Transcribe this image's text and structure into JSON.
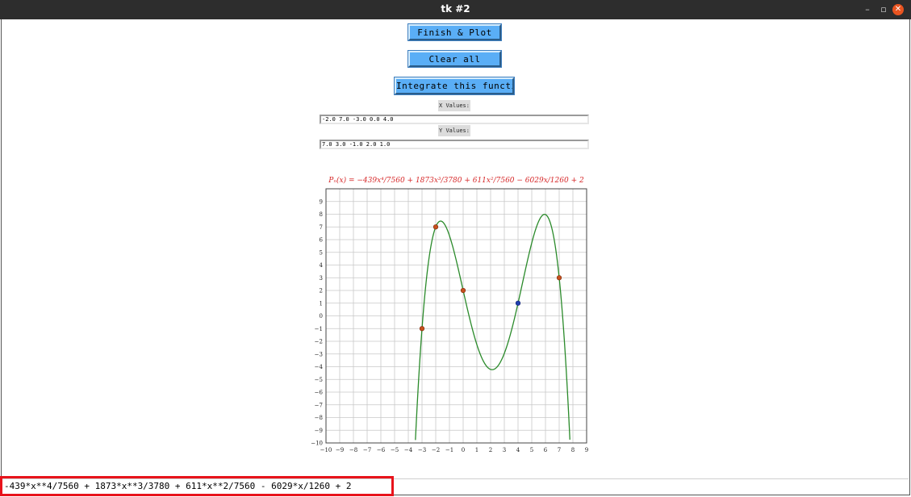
{
  "window": {
    "title": "tk #2",
    "minimize_glyph": "–",
    "maximize_glyph": "▫",
    "close_glyph": "✕"
  },
  "buttons": {
    "finish_plot": "Finish & Plot",
    "clear_all": "Clear all",
    "integrate": "Integrate this function"
  },
  "inputs": {
    "x_label": "X Values:",
    "x_value": "-2.0 7.0 -3.0 0.0 4.0",
    "y_label": "Y Values:",
    "y_value": "7.0 3.0 -1.0 2.0 1.0"
  },
  "status": {
    "expression": "-439*x**4/7560 + 1873*x**3/3780 + 611*x**2/7560 - 6029*x/1260 + 2"
  },
  "colors": {
    "curve": "#2a8a2a",
    "point": "#c8501e",
    "highlight_point": "#1f3fb0",
    "title": "#d62728",
    "accent_button": "#5aaef6"
  },
  "chart_data": {
    "type": "line",
    "title": "Pₙ(x) = −439x⁴/7560 + 1873x³/3780 + 611x²/7560 − 6029x/1260 + 2",
    "xlabel": "",
    "ylabel": "",
    "xlim": [
      -10,
      9
    ],
    "ylim": [
      -10,
      10
    ],
    "grid": true,
    "x_ticks": [
      -10,
      -9,
      -8,
      -7,
      -6,
      -5,
      -4,
      -3,
      -2,
      -1,
      0,
      1,
      2,
      3,
      4,
      5,
      6,
      7,
      8,
      9
    ],
    "y_ticks": [
      -10,
      -9,
      -8,
      -7,
      -6,
      -5,
      -4,
      -3,
      -2,
      -1,
      0,
      1,
      2,
      3,
      4,
      5,
      6,
      7,
      8,
      9
    ],
    "polynomial_coefficients": [
      -0.058068783,
      0.495502646,
      0.080820106,
      -4.784920635,
      2
    ],
    "series": [
      {
        "values": "polynomial curve"
      }
    ],
    "points": [
      {
        "x": -2,
        "y": 7
      },
      {
        "x": 7,
        "y": 3
      },
      {
        "x": -3,
        "y": -1
      },
      {
        "x": 0,
        "y": 2
      },
      {
        "x": 4,
        "y": 1
      }
    ],
    "highlighted_point": {
      "x": 4,
      "y": 1
    }
  }
}
